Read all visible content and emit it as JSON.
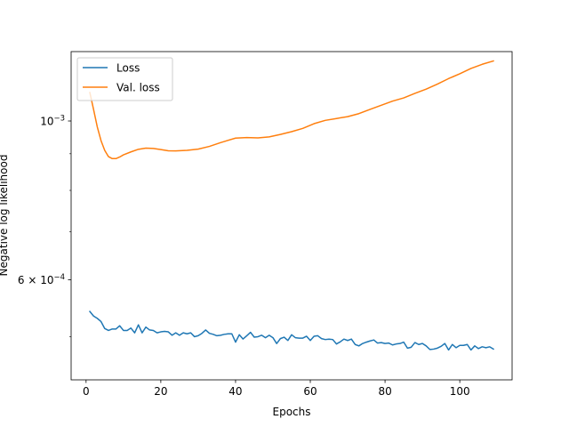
{
  "chart_data": {
    "type": "line",
    "xlabel": "Epochs",
    "ylabel": "Negative log likelihood",
    "yscale": "log",
    "xlim": [
      -4,
      114
    ],
    "ylim": [
      0.000435,
      0.00125
    ],
    "grid": false,
    "legend_position": "top-left",
    "x_ticks": [
      {
        "value": 0,
        "label": "0"
      },
      {
        "value": 20,
        "label": "20"
      },
      {
        "value": 40,
        "label": "40"
      },
      {
        "value": 60,
        "label": "60"
      },
      {
        "value": 80,
        "label": "80"
      },
      {
        "value": 100,
        "label": "100"
      }
    ],
    "y_ticks": [
      {
        "value": 0.001,
        "mantissa": "10",
        "exponent": "−3"
      },
      {
        "value": 0.0006,
        "mantissa": "6 × 10",
        "exponent": "−4"
      }
    ],
    "series": [
      {
        "name": "Loss",
        "color": "#1f77b4",
        "x": [
          1,
          2,
          3,
          4,
          5,
          6,
          7,
          8,
          9,
          10,
          11,
          12,
          13,
          14,
          15,
          16,
          17,
          18,
          19,
          20,
          21,
          22,
          23,
          24,
          25,
          26,
          27,
          28,
          29,
          30,
          31,
          32,
          33,
          34,
          35,
          36,
          37,
          38,
          39,
          40,
          41,
          42,
          43,
          44,
          45,
          46,
          47,
          48,
          49,
          50,
          51,
          52,
          53,
          54,
          55,
          56,
          57,
          58,
          59,
          60,
          61,
          62,
          63,
          64,
          65,
          66,
          67,
          68,
          69,
          70,
          71,
          72,
          73,
          74,
          75,
          76,
          77,
          78,
          79,
          80,
          81,
          82,
          83,
          84,
          85,
          86,
          87,
          88,
          89,
          90,
          91,
          92,
          93,
          94,
          95,
          96,
          97,
          98,
          99,
          100,
          101,
          102,
          103,
          104,
          105,
          106,
          107,
          108,
          109
        ],
        "y": [
          0.000542,
          0.0005341,
          0.0005301,
          0.0005247,
          0.000513,
          0.0005099,
          0.0005123,
          0.0005123,
          0.0005176,
          0.0005099,
          0.0005099,
          0.0005138,
          0.000506,
          0.0005191,
          0.000506,
          0.0005154,
          0.0005107,
          0.0005099,
          0.000506,
          0.0005076,
          0.0005084,
          0.0005076,
          0.0005021,
          0.000506,
          0.0005021,
          0.000506,
          0.0005044,
          0.000506,
          0.0004998,
          0.0005013,
          0.0005052,
          0.0005107,
          0.0005052,
          0.0005036,
          0.0005013,
          0.0005021,
          0.0005036,
          0.0005044,
          0.0005044,
          0.0004911,
          0.0005029,
          0.000496,
          0.0005013,
          0.0005068,
          0.000499,
          0.0004998,
          0.0005021,
          0.0004982,
          0.0005021,
          0.0004982,
          0.0004889,
          0.0004967,
          0.000499,
          0.0004937,
          0.0005029,
          0.0004982,
          0.0004975,
          0.0004975,
          0.0005005,
          0.0004937,
          0.0005005,
          0.0005013,
          0.0004967,
          0.0004952,
          0.0004959,
          0.0004952,
          0.0004882,
          0.0004915,
          0.0004959,
          0.0004937,
          0.0004959,
          0.0004874,
          0.0004852,
          0.0004889,
          0.0004911,
          0.000493,
          0.0004945,
          0.0004896,
          0.0004904,
          0.0004889,
          0.0004896,
          0.0004867,
          0.0004882,
          0.0004889,
          0.0004911,
          0.0004817,
          0.0004831,
          0.0004904,
          0.0004874,
          0.0004889,
          0.0004852,
          0.0004796,
          0.0004802,
          0.0004817,
          0.0004845,
          0.0004889,
          0.0004789,
          0.0004874,
          0.0004824,
          0.000486,
          0.000486,
          0.0004874,
          0.0004789,
          0.0004852,
          0.000481,
          0.0004838,
          0.0004824,
          0.0004838,
          0.0004803
        ]
      },
      {
        "name": "Val. loss",
        "color": "#ff7f0e",
        "x": [
          1,
          2,
          3,
          4,
          5,
          6,
          7,
          8,
          9,
          10,
          12,
          14,
          16,
          18,
          20,
          22,
          24,
          27,
          30,
          33,
          36,
          40,
          43,
          46,
          49,
          52,
          55,
          58,
          61,
          64,
          67,
          70,
          73,
          76,
          79,
          82,
          85,
          88,
          91,
          94,
          97,
          100,
          103,
          106,
          109
        ],
        "y": [
          0.001096,
          0.001038,
          0.0009812,
          0.0009388,
          0.0009096,
          0.0008917,
          0.0008861,
          0.0008861,
          0.0008907,
          0.0008969,
          0.0009054,
          0.000913,
          0.0009165,
          0.0009155,
          0.0009123,
          0.0009087,
          0.0009084,
          0.0009099,
          0.0009136,
          0.0009216,
          0.0009329,
          0.0009465,
          0.000948,
          0.000947,
          0.0009502,
          0.0009577,
          0.0009662,
          0.0009765,
          0.0009914,
          0.001002,
          0.001008,
          0.001014,
          0.001024,
          0.001038,
          0.001052,
          0.001066,
          0.001077,
          0.001093,
          0.001108,
          0.001126,
          0.001146,
          0.001164,
          0.001184,
          0.0012,
          0.001213
        ]
      }
    ]
  }
}
